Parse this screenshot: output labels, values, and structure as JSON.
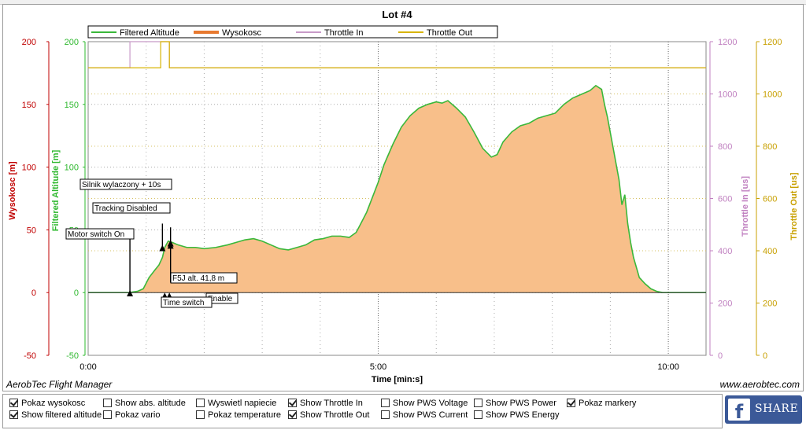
{
  "chart_data": {
    "type": "line",
    "title": "Lot #4",
    "xlabel": "Time [min:s]",
    "x_ticks": [
      "0:00",
      "5:00",
      "10:00"
    ],
    "xlim": [
      0,
      10.65
    ],
    "axes": {
      "wysokosc": {
        "label": "Wysokosc [m]",
        "ticks": [
          "200",
          "150",
          "100",
          "50",
          "0",
          "-50"
        ],
        "range": [
          -50,
          200
        ],
        "color": "#c00000"
      },
      "filtered": {
        "label": "Filtered Altitude [m]",
        "ticks": [
          "200",
          "150",
          "100",
          "50",
          "0",
          "-50"
        ],
        "range": [
          -50,
          200
        ],
        "color": "#2eb82e"
      },
      "throttle_in": {
        "label": "Throttle In [us]",
        "ticks": [
          "1200",
          "1000",
          "800",
          "600",
          "400",
          "200",
          "0"
        ],
        "range": [
          0,
          1200
        ],
        "color": "#c080c0"
      },
      "throttle_out": {
        "label": "Throttle Out [us]",
        "ticks": [
          "1200",
          "1000",
          "800",
          "600",
          "400",
          "200",
          "0"
        ],
        "range": [
          0,
          1200
        ],
        "color": "#c8a000"
      }
    },
    "legend": [
      "Filtered Altitude",
      "Wysokosc",
      "Throttle In",
      "Throttle Out"
    ],
    "legend_placement": "top",
    "grid": true,
    "series": [
      {
        "name": "Filtered Altitude",
        "color": "#3ab83a",
        "fill": "#f8bf8a",
        "x": [
          0,
          0.5,
          0.7,
          0.85,
          0.95,
          1.05,
          1.15,
          1.22,
          1.28,
          1.32,
          1.38,
          1.45,
          1.55,
          1.7,
          1.85,
          2.0,
          2.2,
          2.4,
          2.55,
          2.7,
          2.85,
          3.0,
          3.15,
          3.3,
          3.45,
          3.6,
          3.75,
          3.9,
          4.05,
          4.2,
          4.35,
          4.5,
          4.62,
          4.7,
          4.8,
          4.9,
          5.0,
          5.1,
          5.25,
          5.4,
          5.55,
          5.7,
          5.85,
          6.0,
          6.1,
          6.2,
          6.35,
          6.5,
          6.65,
          6.8,
          6.95,
          7.05,
          7.15,
          7.3,
          7.45,
          7.6,
          7.75,
          7.9,
          8.05,
          8.2,
          8.35,
          8.5,
          8.65,
          8.75,
          8.85,
          8.9,
          8.95,
          9.05,
          9.15,
          9.2,
          9.25,
          9.3,
          9.35,
          9.4,
          9.45,
          9.5,
          9.6,
          9.7,
          9.8,
          9.9,
          10.0,
          10.1,
          10.2,
          10.3,
          10.4,
          10.5,
          10.65
        ],
        "values": [
          0,
          0,
          0,
          1,
          3,
          12,
          18,
          22,
          28,
          36,
          41,
          40,
          38,
          36,
          36,
          35,
          36,
          38,
          40,
          42,
          43,
          41,
          38,
          35,
          34,
          36,
          38,
          42,
          43,
          45,
          45,
          44,
          48,
          55,
          64,
          76,
          88,
          102,
          118,
          132,
          141,
          147,
          150,
          152,
          151,
          153,
          147,
          140,
          128,
          115,
          108,
          110,
          120,
          128,
          133,
          135,
          139,
          141,
          143,
          150,
          155,
          158,
          161,
          165,
          162,
          150,
          140,
          115,
          90,
          70,
          78,
          55,
          40,
          28,
          20,
          12,
          7,
          3,
          1,
          0,
          0,
          0,
          0,
          0,
          0,
          0,
          0
        ]
      },
      {
        "name": "Throttle In",
        "color": "#c89ac8",
        "x": [
          0,
          0.72,
          0.72,
          1.4,
          1.4,
          10.65
        ],
        "values": [
          1100,
          1100,
          1200,
          1200,
          1100,
          1100
        ]
      },
      {
        "name": "Throttle Out",
        "color": "#d8b400",
        "x": [
          0,
          1.25,
          1.25,
          1.4,
          1.4,
          10.65
        ],
        "values": [
          1100,
          1100,
          1200,
          1200,
          1100,
          1100
        ]
      }
    ],
    "annotations": [
      {
        "text": "Silnik wylaczony + 10s",
        "x": 1.42,
        "y": 40
      },
      {
        "text": "Tracking Disabled",
        "x": 1.28,
        "y": 38
      },
      {
        "text": "Motor switch On",
        "x": 0.72,
        "y": 2
      },
      {
        "text": "F5J alt. 41,8 m",
        "x": 1.42,
        "y": 41.8
      },
      {
        "text": "Enable",
        "x": 1.4,
        "y": 0
      },
      {
        "text": "Time switch",
        "x": 1.32,
        "y": 0
      }
    ]
  },
  "footer": {
    "left_text": "AerobTec Flight Manager",
    "right_text": "www.aerobtec.com"
  },
  "checkboxes": [
    {
      "label": "Pokaz wysokosc",
      "checked": true
    },
    {
      "label": "Show filtered altitude",
      "checked": true
    },
    {
      "label": "Show abs. altitude",
      "checked": false
    },
    {
      "label": "Pokaz vario",
      "checked": false
    },
    {
      "label": "Wyswietl napiecie",
      "checked": false
    },
    {
      "label": "Pokaz temperature",
      "checked": false
    },
    {
      "label": "Show Throttle In",
      "checked": true
    },
    {
      "label": "Show Throttle Out",
      "checked": true
    },
    {
      "label": "Show PWS Voltage",
      "checked": false
    },
    {
      "label": "Show PWS Current",
      "checked": false
    },
    {
      "label": "Show PWS Power",
      "checked": false
    },
    {
      "label": "Show PWS Energy",
      "checked": false
    },
    {
      "label": "Pokaz markery",
      "checked": true
    }
  ],
  "share_button": {
    "label": "SHARE",
    "icon": "facebook-icon"
  }
}
